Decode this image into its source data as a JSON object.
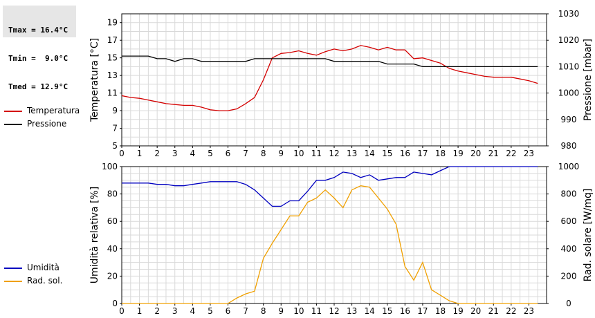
{
  "stats": {
    "tmax": "Tmax = 16.4°C",
    "tmin": "Tmin =  9.0°C",
    "tmed": "Tmed = 12.9°C"
  },
  "legend_top": [
    {
      "label": "Temperatura",
      "color": "#d40000"
    },
    {
      "label": "Pressione",
      "color": "#000000"
    }
  ],
  "legend_bottom": [
    {
      "label": "Umidità",
      "color": "#0000c0"
    },
    {
      "label": "Rad. sol.",
      "color": "#f0a000"
    }
  ],
  "chart_data": [
    {
      "type": "line",
      "title": "",
      "xlabel": "",
      "x_ticks": [
        "0",
        "1",
        "2",
        "3",
        "4",
        "5",
        "6",
        "7",
        "8",
        "9",
        "10",
        "11",
        "12",
        "13",
        "14",
        "15",
        "16",
        "17",
        "18",
        "19",
        "20",
        "21",
        "22",
        "23"
      ],
      "xlim": [
        0,
        24
      ],
      "grid": true,
      "ylabel": "Temperatura [°C]",
      "ylim": [
        5,
        20
      ],
      "y_ticks": [
        5,
        7,
        9,
        11,
        13,
        15,
        17,
        19
      ],
      "y2label": "Pressione [mbar]",
      "y2lim": [
        980,
        1030
      ],
      "y2_ticks": [
        980,
        990,
        1000,
        1010,
        1020,
        1030
      ],
      "series": [
        {
          "name": "Temperatura",
          "axis": "left",
          "color": "#d40000",
          "x": [
            0,
            0.5,
            1,
            1.5,
            2,
            2.5,
            3,
            3.5,
            4,
            4.5,
            5,
            5.5,
            6,
            6.5,
            7,
            7.5,
            8,
            8.5,
            9,
            9.5,
            10,
            10.5,
            11,
            11.5,
            12,
            12.5,
            13,
            13.5,
            14,
            14.5,
            15,
            15.5,
            16,
            16.5,
            17,
            17.5,
            18,
            18.5,
            19,
            19.5,
            20,
            20.5,
            21,
            21.5,
            22,
            22.5,
            23,
            23.5
          ],
          "y": [
            10.7,
            10.5,
            10.4,
            10.2,
            10.0,
            9.8,
            9.7,
            9.6,
            9.6,
            9.4,
            9.1,
            9.0,
            9.0,
            9.2,
            9.8,
            10.5,
            12.5,
            15.0,
            15.5,
            15.6,
            15.8,
            15.5,
            15.3,
            15.7,
            16.0,
            15.8,
            16.0,
            16.4,
            16.2,
            15.9,
            16.2,
            15.9,
            15.9,
            14.9,
            15.0,
            14.7,
            14.4,
            13.8,
            13.5,
            13.3,
            13.1,
            12.9,
            12.8,
            12.8,
            12.8,
            12.6,
            12.4,
            12.1
          ]
        },
        {
          "name": "Pressione",
          "axis": "right",
          "color": "#000000",
          "x": [
            0,
            0.5,
            1,
            1.5,
            2,
            2.5,
            3,
            3.5,
            4,
            4.5,
            5,
            5.5,
            6,
            6.5,
            7,
            7.5,
            8,
            8.5,
            9,
            9.5,
            10,
            10.5,
            11,
            11.5,
            12,
            12.5,
            13,
            13.5,
            14,
            14.5,
            15,
            15.5,
            16,
            16.5,
            17,
            17.5,
            18,
            18.5,
            19,
            19.5,
            20,
            20.5,
            21,
            21.5,
            22,
            22.5,
            23,
            23.5
          ],
          "y": [
            1014,
            1014,
            1014,
            1014,
            1013,
            1013,
            1012,
            1013,
            1013,
            1012,
            1012,
            1012,
            1012,
            1012,
            1012,
            1013,
            1013,
            1013,
            1013,
            1013,
            1013,
            1013,
            1013,
            1013,
            1012,
            1012,
            1012,
            1012,
            1012,
            1012,
            1011,
            1011,
            1011,
            1011,
            1010,
            1010,
            1010,
            1010,
            1010,
            1010,
            1010,
            1010,
            1010,
            1010,
            1010,
            1010,
            1010,
            1010
          ]
        }
      ]
    },
    {
      "type": "line",
      "title": "",
      "xlabel": "",
      "x_ticks": [
        "0",
        "1",
        "2",
        "3",
        "4",
        "5",
        "6",
        "7",
        "8",
        "9",
        "10",
        "11",
        "12",
        "13",
        "14",
        "15",
        "16",
        "17",
        "18",
        "19",
        "20",
        "21",
        "22",
        "23"
      ],
      "xlim": [
        0,
        24
      ],
      "grid": true,
      "ylabel": "Umidità relativa [%]",
      "ylim": [
        0,
        100
      ],
      "y_ticks": [
        0,
        20,
        40,
        60,
        80,
        100
      ],
      "y2label": "Rad. solare [W/mq]",
      "y2lim": [
        0,
        1000
      ],
      "y2_ticks": [
        0,
        200,
        400,
        600,
        800,
        1000
      ],
      "series": [
        {
          "name": "Umidità",
          "axis": "left",
          "color": "#0000c0",
          "x": [
            0,
            0.5,
            1,
            1.5,
            2,
            2.5,
            3,
            3.5,
            4,
            4.5,
            5,
            5.5,
            6,
            6.5,
            7,
            7.5,
            8,
            8.5,
            9,
            9.5,
            10,
            10.5,
            11,
            11.5,
            12,
            12.5,
            13,
            13.5,
            14,
            14.5,
            15,
            15.5,
            16,
            16.5,
            17,
            17.5,
            18,
            18.5,
            19,
            19.5,
            20,
            20.5,
            21,
            21.5,
            22,
            22.5,
            23,
            23.5
          ],
          "y": [
            88,
            88,
            88,
            88,
            87,
            87,
            86,
            86,
            87,
            88,
            89,
            89,
            89,
            89,
            87,
            83,
            77,
            71,
            71,
            75,
            75,
            82,
            90,
            90,
            92,
            96,
            95,
            92,
            94,
            90,
            91,
            92,
            92,
            96,
            95,
            94,
            97,
            100,
            100,
            100,
            100,
            100,
            100,
            100,
            100,
            100,
            100,
            100
          ]
        },
        {
          "name": "Rad. sol.",
          "axis": "right",
          "color": "#f0a000",
          "x": [
            0,
            0.5,
            1,
            1.5,
            2,
            2.5,
            3,
            3.5,
            4,
            4.5,
            5,
            5.5,
            6,
            6.5,
            7,
            7.5,
            8,
            8.5,
            9,
            9.5,
            10,
            10.5,
            11,
            11.5,
            12,
            12.5,
            13,
            13.5,
            14,
            14.5,
            15,
            15.5,
            16,
            16.5,
            17,
            17.5,
            18,
            18.5,
            19,
            19.5,
            20,
            20.5,
            21,
            21.5,
            22,
            22.5,
            23,
            23.5
          ],
          "y": [
            0,
            0,
            0,
            0,
            0,
            0,
            0,
            0,
            0,
            0,
            0,
            0,
            0,
            40,
            70,
            90,
            330,
            440,
            540,
            640,
            640,
            740,
            770,
            830,
            770,
            700,
            830,
            860,
            850,
            770,
            690,
            580,
            270,
            170,
            300,
            100,
            60,
            20,
            0,
            0,
            0,
            0,
            0,
            0,
            0,
            0,
            0,
            0
          ]
        }
      ]
    }
  ]
}
